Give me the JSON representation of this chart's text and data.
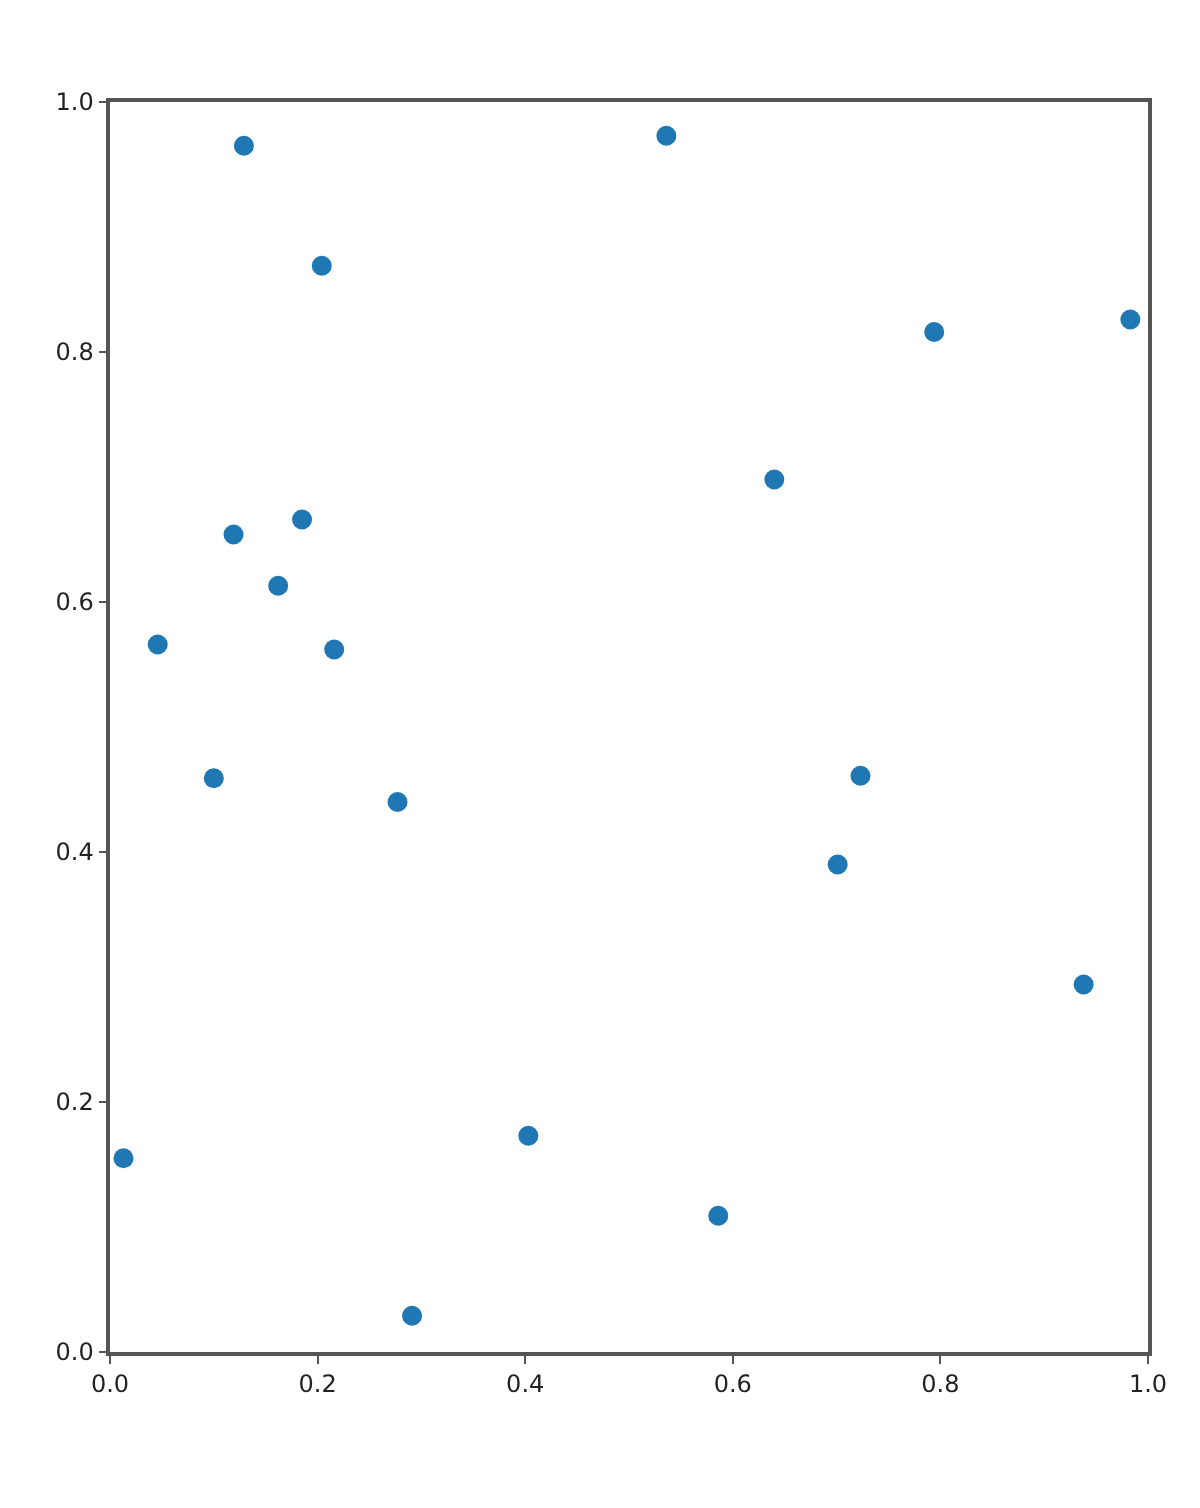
{
  "chart_data": {
    "type": "scatter",
    "x": [
      0.129,
      0.204,
      0.536,
      0.794,
      0.983,
      0.64,
      0.119,
      0.185,
      0.162,
      0.046,
      0.216,
      0.1,
      0.277,
      0.723,
      0.701,
      0.938,
      0.013,
      0.403,
      0.586,
      0.291
    ],
    "values": [
      0.965,
      0.869,
      0.973,
      0.816,
      0.826,
      0.698,
      0.654,
      0.666,
      0.613,
      0.566,
      0.562,
      0.459,
      0.44,
      0.461,
      0.39,
      0.294,
      0.155,
      0.173,
      0.109,
      0.029
    ],
    "color": "#1f77b4",
    "marker": "circle",
    "grid": false,
    "xlim": [
      0.0,
      1.0
    ],
    "xticks": [
      {
        "value": 0,
        "label": "0.0"
      },
      0.2,
      0.4,
      0.6,
      0.8,
      {
        "value": 1,
        "label": "1.0"
      }
    ],
    "ylim": [
      0.0,
      1.0
    ],
    "yticks": [
      {
        "value": 0,
        "label": "0.0"
      },
      0.2,
      0.4,
      0.6,
      0.8,
      {
        "value": 1,
        "label": "1.0"
      }
    ]
  }
}
